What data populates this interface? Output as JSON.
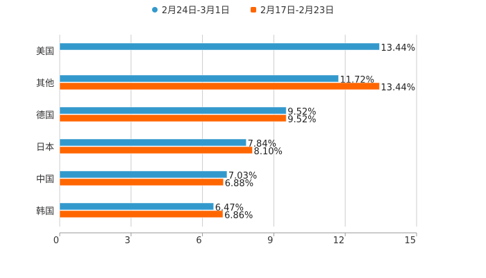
{
  "chart_data": {
    "type": "bar",
    "orientation": "horizontal",
    "title": "",
    "xlabel": "",
    "ylabel": "",
    "xlim": [
      0,
      15
    ],
    "xticks": [
      0,
      3,
      6,
      9,
      12,
      15
    ],
    "grid": true,
    "legend_position": "top",
    "categories": [
      "美国",
      "其他",
      "德国",
      "日本",
      "中国",
      "韩国"
    ],
    "series": [
      {
        "name": "2月24日-3月1日",
        "color": "#3399cc",
        "marker": "circle",
        "values": [
          13.44,
          11.72,
          9.52,
          7.84,
          7.03,
          6.47
        ],
        "labels": [
          "13.44%",
          "11.72%",
          "9.52%",
          "7.84%",
          "7.03%",
          "6.47%"
        ]
      },
      {
        "name": "2月17日-2月23日",
        "color": "#ff6600",
        "marker": "square",
        "values": [
          null,
          13.44,
          9.52,
          8.1,
          6.88,
          6.86
        ],
        "labels": [
          null,
          "13.44%",
          "9.52%",
          "8.10%",
          "6.88%",
          "6.86%"
        ]
      }
    ]
  },
  "legend": {
    "items": [
      {
        "label": "2月24日-3月1日",
        "color": "#3399cc"
      },
      {
        "label": "2月17日-2月23日",
        "color": "#ff6600"
      }
    ]
  }
}
